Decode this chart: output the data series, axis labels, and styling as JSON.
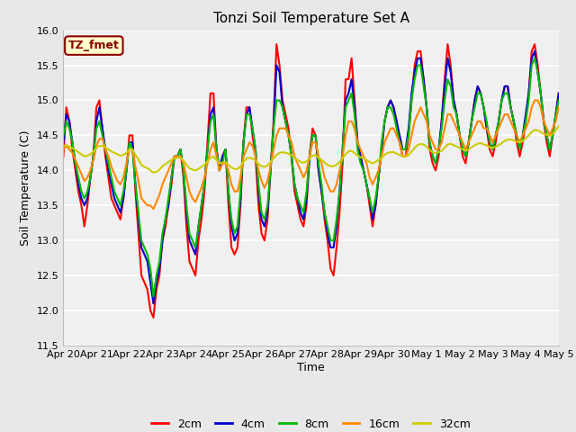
{
  "title": "Tonzi Soil Temperature Set A",
  "xlabel": "Time",
  "ylabel": "Soil Temperature (C)",
  "ylim": [
    11.5,
    16.0
  ],
  "annotation_text": "TZ_fmet",
  "annotation_color": "#8B0000",
  "annotation_bg": "#FFFFCC",
  "background_color": "#E8E8E8",
  "plot_bg": "#F0F0F0",
  "line_colors": {
    "2cm": "#FF0000",
    "4cm": "#0000CC",
    "8cm": "#00BB00",
    "16cm": "#FF8800",
    "32cm": "#CCCC00"
  },
  "x_tick_labels": [
    "Apr 20",
    "Apr 21",
    "Apr 22",
    "Apr 23",
    "Apr 24",
    "Apr 25",
    "Apr 26",
    "Apr 27",
    "Apr 28",
    "Apr 29",
    "Apr 30",
    "May 1",
    "May 2",
    "May 3",
    "May 4",
    "May 5"
  ],
  "series_2cm": [
    14.2,
    14.9,
    14.7,
    14.3,
    14.0,
    13.7,
    13.5,
    13.2,
    13.5,
    13.9,
    14.2,
    14.9,
    15.0,
    14.6,
    14.2,
    13.9,
    13.6,
    13.5,
    13.4,
    13.3,
    13.6,
    14.0,
    14.5,
    14.5,
    13.7,
    13.1,
    12.5,
    12.4,
    12.3,
    12.0,
    11.9,
    12.3,
    12.5,
    13.0,
    13.2,
    13.5,
    13.8,
    14.2,
    14.2,
    14.3,
    13.9,
    13.2,
    12.7,
    12.6,
    12.5,
    13.0,
    13.3,
    13.7,
    14.4,
    15.1,
    15.1,
    14.3,
    14.0,
    14.2,
    14.3,
    13.5,
    12.9,
    12.8,
    12.9,
    13.5,
    14.4,
    14.9,
    14.9,
    14.5,
    14.2,
    13.5,
    13.1,
    13.0,
    13.3,
    14.0,
    14.7,
    15.8,
    15.5,
    15.0,
    14.8,
    14.6,
    14.2,
    13.7,
    13.5,
    13.3,
    13.2,
    13.5,
    14.2,
    14.6,
    14.5,
    14.0,
    13.7,
    13.3,
    13.0,
    12.6,
    12.5,
    12.9,
    13.4,
    14.1,
    15.3,
    15.3,
    15.6,
    15.0,
    14.4,
    14.2,
    14.0,
    13.8,
    13.5,
    13.2,
    13.5,
    13.9,
    14.3,
    14.7,
    14.9,
    15.0,
    14.9,
    14.7,
    14.4,
    14.2,
    14.2,
    14.5,
    15.0,
    15.5,
    15.7,
    15.7,
    15.3,
    14.9,
    14.3,
    14.1,
    14.0,
    14.2,
    14.7,
    15.3,
    15.8,
    15.5,
    15.0,
    14.8,
    14.5,
    14.2,
    14.1,
    14.4,
    14.7,
    15.0,
    15.2,
    15.1,
    14.9,
    14.6,
    14.3,
    14.2,
    14.4,
    14.7,
    15.0,
    15.2,
    15.2,
    14.9,
    14.7,
    14.4,
    14.2,
    14.4,
    14.7,
    15.1,
    15.7,
    15.8,
    15.5,
    15.1,
    14.7,
    14.4,
    14.2,
    14.5,
    14.8,
    15.1
  ],
  "series_4cm": [
    14.4,
    14.8,
    14.7,
    14.4,
    14.1,
    13.8,
    13.6,
    13.5,
    13.6,
    13.9,
    14.2,
    14.7,
    14.9,
    14.6,
    14.3,
    14.0,
    13.8,
    13.6,
    13.5,
    13.4,
    13.6,
    14.0,
    14.4,
    14.4,
    13.8,
    13.3,
    12.9,
    12.8,
    12.7,
    12.4,
    12.1,
    12.4,
    12.6,
    13.0,
    13.3,
    13.5,
    13.9,
    14.2,
    14.2,
    14.3,
    14.0,
    13.4,
    13.0,
    12.9,
    12.8,
    13.2,
    13.5,
    13.8,
    14.3,
    14.8,
    14.9,
    14.3,
    14.0,
    14.2,
    14.3,
    13.7,
    13.2,
    13.0,
    13.1,
    13.6,
    14.4,
    14.8,
    14.9,
    14.6,
    14.3,
    13.7,
    13.3,
    13.2,
    13.4,
    14.0,
    14.6,
    15.5,
    15.4,
    14.9,
    14.7,
    14.5,
    14.2,
    13.8,
    13.6,
    13.4,
    13.3,
    13.6,
    14.2,
    14.5,
    14.5,
    14.0,
    13.7,
    13.4,
    13.1,
    12.9,
    12.9,
    13.2,
    13.7,
    14.3,
    15.0,
    15.1,
    15.3,
    14.9,
    14.4,
    14.2,
    14.0,
    13.8,
    13.6,
    13.3,
    13.5,
    13.9,
    14.3,
    14.7,
    14.9,
    15.0,
    14.9,
    14.7,
    14.5,
    14.3,
    14.3,
    14.6,
    15.1,
    15.4,
    15.6,
    15.6,
    15.3,
    14.9,
    14.4,
    14.2,
    14.1,
    14.3,
    14.7,
    15.2,
    15.6,
    15.4,
    15.0,
    14.8,
    14.5,
    14.3,
    14.2,
    14.4,
    14.7,
    15.0,
    15.2,
    15.1,
    14.9,
    14.6,
    14.4,
    14.3,
    14.5,
    14.7,
    15.0,
    15.2,
    15.2,
    14.9,
    14.7,
    14.5,
    14.3,
    14.5,
    14.8,
    15.1,
    15.6,
    15.7,
    15.4,
    15.1,
    14.7,
    14.5,
    14.3,
    14.5,
    14.8,
    15.1
  ],
  "series_8cm": [
    14.5,
    14.7,
    14.6,
    14.4,
    14.1,
    13.9,
    13.7,
    13.6,
    13.7,
    13.9,
    14.2,
    14.6,
    14.7,
    14.5,
    14.3,
    14.1,
    13.9,
    13.7,
    13.6,
    13.5,
    13.7,
    14.0,
    14.4,
    14.3,
    13.8,
    13.4,
    13.0,
    12.9,
    12.8,
    12.6,
    12.2,
    12.5,
    12.7,
    13.1,
    13.3,
    13.6,
    13.9,
    14.2,
    14.2,
    14.3,
    14.0,
    13.5,
    13.1,
    13.0,
    12.9,
    13.2,
    13.5,
    13.8,
    14.3,
    14.7,
    14.8,
    14.3,
    14.0,
    14.1,
    14.3,
    13.7,
    13.3,
    13.1,
    13.2,
    13.7,
    14.4,
    14.8,
    14.8,
    14.6,
    14.3,
    13.8,
    13.4,
    13.3,
    13.5,
    14.0,
    14.6,
    15.0,
    15.0,
    14.9,
    14.7,
    14.5,
    14.2,
    13.8,
    13.6,
    13.5,
    13.4,
    13.7,
    14.2,
    14.5,
    14.5,
    14.1,
    13.8,
    13.4,
    13.2,
    13.0,
    13.0,
    13.3,
    13.7,
    14.3,
    14.9,
    15.0,
    15.1,
    14.8,
    14.3,
    14.1,
    14.0,
    13.8,
    13.6,
    13.4,
    13.6,
    13.9,
    14.4,
    14.7,
    14.9,
    14.9,
    14.8,
    14.6,
    14.4,
    14.3,
    14.3,
    14.5,
    15.0,
    15.3,
    15.5,
    15.5,
    15.2,
    14.9,
    14.4,
    14.2,
    14.1,
    14.3,
    14.6,
    15.0,
    15.3,
    15.2,
    14.9,
    14.8,
    14.5,
    14.3,
    14.2,
    14.4,
    14.7,
    14.9,
    15.1,
    15.1,
    14.9,
    14.7,
    14.4,
    14.3,
    14.5,
    14.7,
    15.0,
    15.1,
    15.1,
    14.9,
    14.7,
    14.5,
    14.3,
    14.5,
    14.7,
    15.0,
    15.5,
    15.6,
    15.4,
    15.1,
    14.7,
    14.5,
    14.3,
    14.5,
    14.8,
    15.0
  ],
  "series_16cm": [
    14.3,
    14.35,
    14.3,
    14.25,
    14.15,
    14.05,
    13.95,
    13.85,
    13.9,
    14.0,
    14.15,
    14.35,
    14.45,
    14.45,
    14.3,
    14.2,
    14.05,
    13.95,
    13.85,
    13.8,
    13.9,
    14.1,
    14.3,
    14.3,
    14.05,
    13.85,
    13.6,
    13.55,
    13.5,
    13.5,
    13.45,
    13.55,
    13.65,
    13.8,
    13.9,
    14.0,
    14.1,
    14.2,
    14.2,
    14.2,
    14.1,
    13.9,
    13.7,
    13.6,
    13.55,
    13.65,
    13.75,
    13.9,
    14.1,
    14.3,
    14.4,
    14.2,
    14.0,
    14.1,
    14.1,
    14.0,
    13.8,
    13.7,
    13.7,
    13.9,
    14.2,
    14.3,
    14.4,
    14.35,
    14.2,
    14.0,
    13.85,
    13.75,
    13.85,
    14.05,
    14.3,
    14.5,
    14.6,
    14.6,
    14.6,
    14.5,
    14.4,
    14.2,
    14.1,
    14.0,
    13.9,
    14.0,
    14.2,
    14.4,
    14.4,
    14.2,
    14.1,
    13.9,
    13.8,
    13.7,
    13.7,
    13.8,
    14.0,
    14.2,
    14.5,
    14.7,
    14.7,
    14.6,
    14.4,
    14.3,
    14.2,
    14.1,
    13.9,
    13.8,
    13.9,
    14.0,
    14.2,
    14.4,
    14.5,
    14.6,
    14.6,
    14.5,
    14.4,
    14.2,
    14.2,
    14.3,
    14.5,
    14.7,
    14.8,
    14.9,
    14.8,
    14.7,
    14.5,
    14.4,
    14.3,
    14.3,
    14.4,
    14.6,
    14.8,
    14.8,
    14.7,
    14.6,
    14.5,
    14.4,
    14.3,
    14.4,
    14.5,
    14.6,
    14.7,
    14.7,
    14.6,
    14.6,
    14.5,
    14.4,
    14.5,
    14.6,
    14.7,
    14.8,
    14.8,
    14.7,
    14.6,
    14.5,
    14.4,
    14.5,
    14.6,
    14.7,
    14.9,
    15.0,
    15.0,
    14.9,
    14.7,
    14.6,
    14.5,
    14.6,
    14.7,
    14.9
  ],
  "series_32cm": [
    14.35,
    14.36,
    14.34,
    14.32,
    14.29,
    14.26,
    14.23,
    14.2,
    14.21,
    14.23,
    14.27,
    14.32,
    14.35,
    14.35,
    14.33,
    14.3,
    14.27,
    14.25,
    14.23,
    14.21,
    14.22,
    14.25,
    14.3,
    14.3,
    14.22,
    14.16,
    14.08,
    14.05,
    14.03,
    14.0,
    13.97,
    13.98,
    14.01,
    14.06,
    14.09,
    14.12,
    14.15,
    14.17,
    14.18,
    14.18,
    14.14,
    14.08,
    14.03,
    14.01,
    14.0,
    14.02,
    14.05,
    14.08,
    14.13,
    14.18,
    14.2,
    14.15,
    14.1,
    14.11,
    14.12,
    14.08,
    14.04,
    14.02,
    14.02,
    14.06,
    14.12,
    14.17,
    14.18,
    14.17,
    14.14,
    14.09,
    14.06,
    14.05,
    14.07,
    14.12,
    14.17,
    14.22,
    14.25,
    14.26,
    14.25,
    14.24,
    14.22,
    14.18,
    14.15,
    14.12,
    14.11,
    14.13,
    14.17,
    14.21,
    14.22,
    14.18,
    14.15,
    14.11,
    14.08,
    14.06,
    14.06,
    14.08,
    14.12,
    14.17,
    14.23,
    14.27,
    14.28,
    14.25,
    14.21,
    14.19,
    14.17,
    14.15,
    14.12,
    14.1,
    14.12,
    14.15,
    14.18,
    14.22,
    14.25,
    14.26,
    14.26,
    14.24,
    14.22,
    14.2,
    14.2,
    14.22,
    14.27,
    14.32,
    14.36,
    14.38,
    14.37,
    14.34,
    14.29,
    14.26,
    14.25,
    14.26,
    14.28,
    14.32,
    14.37,
    14.38,
    14.36,
    14.34,
    14.32,
    14.3,
    14.28,
    14.3,
    14.33,
    14.36,
    14.38,
    14.39,
    14.37,
    14.36,
    14.33,
    14.32,
    14.34,
    14.36,
    14.39,
    14.42,
    14.44,
    14.44,
    14.43,
    14.41,
    14.4,
    14.42,
    14.46,
    14.5,
    14.55,
    14.58,
    14.57,
    14.55,
    14.52,
    14.51,
    14.49,
    14.52,
    14.57,
    14.63
  ]
}
